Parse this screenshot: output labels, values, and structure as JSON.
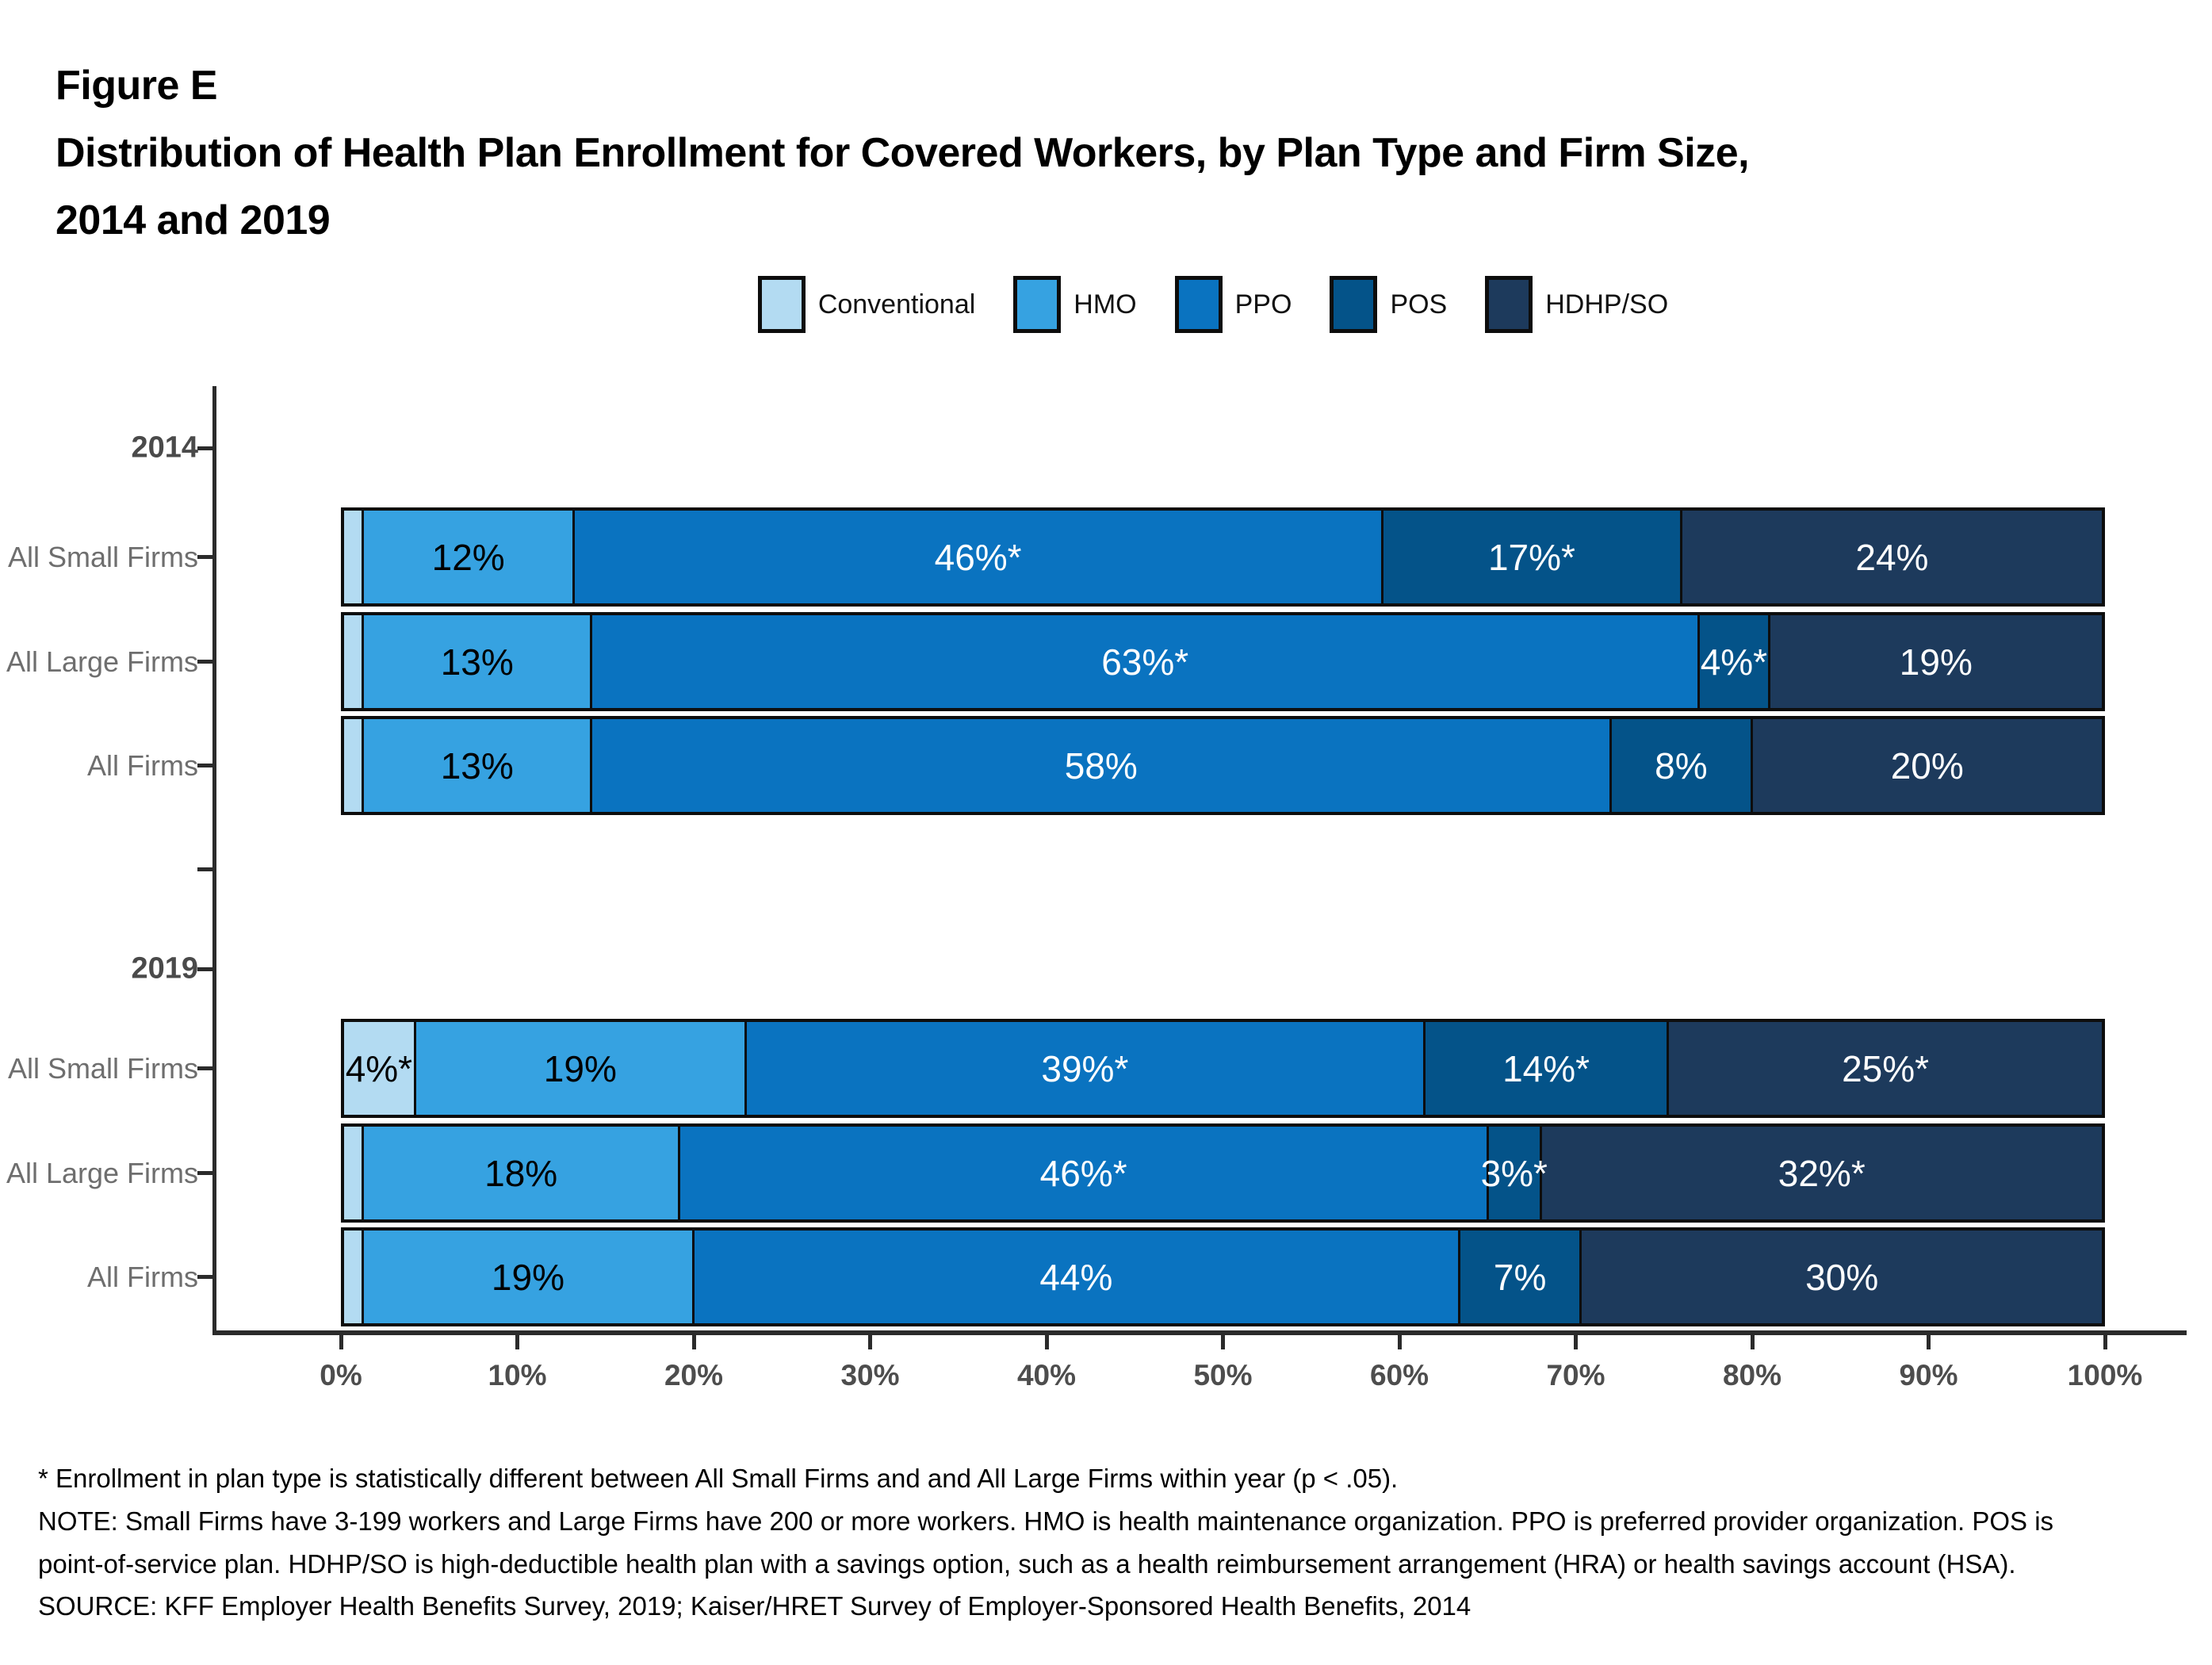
{
  "header": {
    "figure_label": "Figure E",
    "title_line1": "Distribution of Health Plan Enrollment for Covered Workers, by Plan Type and Firm Size,",
    "title_line2": "2014 and 2019"
  },
  "legend": [
    {
      "label": "Conventional",
      "color": "#B3DBF2"
    },
    {
      "label": "HMO",
      "color": "#36A2E1"
    },
    {
      "label": "PPO",
      "color": "#0A73C0"
    },
    {
      "label": "POS",
      "color": "#045389"
    },
    {
      "label": "HDHP/SO",
      "color": "#1D3A5C"
    }
  ],
  "chart_data": {
    "type": "bar",
    "subtype": "horizontal-stacked",
    "title": "Distribution of Health Plan Enrollment for Covered Workers, by Plan Type and Firm Size, 2014 and 2019",
    "series_names": [
      "Conventional",
      "HMO",
      "PPO",
      "POS",
      "HDHP/SO"
    ],
    "series_colors": [
      "#B3DBF2",
      "#36A2E1",
      "#0A73C0",
      "#045389",
      "#1D3A5C"
    ],
    "series_label_text_colors": [
      "#000000",
      "#000000",
      "#ffffff",
      "#ffffff",
      "#ffffff"
    ],
    "x_range": [
      0,
      100
    ],
    "x_ticks": [
      "0%",
      "10%",
      "20%",
      "30%",
      "40%",
      "50%",
      "60%",
      "70%",
      "80%",
      "90%",
      "100%"
    ],
    "legend_position": "top-center",
    "grid": false,
    "groups": [
      {
        "year_label": "2014",
        "rows": [
          {
            "category": "All Small Firms",
            "segments": [
              {
                "series": "Conventional",
                "value": 1,
                "label": ""
              },
              {
                "series": "HMO",
                "value": 12,
                "label": "12%"
              },
              {
                "series": "PPO",
                "value": 46,
                "label": "46%*"
              },
              {
                "series": "POS",
                "value": 17,
                "label": "17%*"
              },
              {
                "series": "HDHP/SO",
                "value": 24,
                "label": "24%"
              }
            ]
          },
          {
            "category": "All Large Firms",
            "segments": [
              {
                "series": "Conventional",
                "value": 1,
                "label": ""
              },
              {
                "series": "HMO",
                "value": 13,
                "label": "13%"
              },
              {
                "series": "PPO",
                "value": 63,
                "label": "63%*"
              },
              {
                "series": "POS",
                "value": 4,
                "label": "4%*"
              },
              {
                "series": "HDHP/SO",
                "value": 19,
                "label": "19%"
              }
            ]
          },
          {
            "category": "All Firms",
            "segments": [
              {
                "series": "Conventional",
                "value": 1,
                "label": ""
              },
              {
                "series": "HMO",
                "value": 13,
                "label": "13%"
              },
              {
                "series": "PPO",
                "value": 58,
                "label": "58%"
              },
              {
                "series": "POS",
                "value": 8,
                "label": "8%"
              },
              {
                "series": "HDHP/SO",
                "value": 20,
                "label": "20%"
              }
            ]
          }
        ]
      },
      {
        "year_label": "2019",
        "rows": [
          {
            "category": "All Small Firms",
            "segments": [
              {
                "series": "Conventional",
                "value": 4,
                "label": "4%*"
              },
              {
                "series": "HMO",
                "value": 19,
                "label": "19%"
              },
              {
                "series": "PPO",
                "value": 39,
                "label": "39%*"
              },
              {
                "series": "POS",
                "value": 14,
                "label": "14%*"
              },
              {
                "series": "HDHP/SO",
                "value": 25,
                "label": "25%*"
              }
            ]
          },
          {
            "category": "All Large Firms",
            "segments": [
              {
                "series": "Conventional",
                "value": 1,
                "label": ""
              },
              {
                "series": "HMO",
                "value": 18,
                "label": "18%"
              },
              {
                "series": "PPO",
                "value": 46,
                "label": "46%*"
              },
              {
                "series": "POS",
                "value": 3,
                "label": "3%*"
              },
              {
                "series": "HDHP/SO",
                "value": 32,
                "label": "32%*"
              }
            ]
          },
          {
            "category": "All Firms",
            "segments": [
              {
                "series": "Conventional",
                "value": 1,
                "label": ""
              },
              {
                "series": "HMO",
                "value": 19,
                "label": "19%"
              },
              {
                "series": "PPO",
                "value": 44,
                "label": "44%"
              },
              {
                "series": "POS",
                "value": 7,
                "label": "7%"
              },
              {
                "series": "HDHP/SO",
                "value": 30,
                "label": "30%"
              }
            ]
          }
        ]
      }
    ]
  },
  "footnotes": {
    "asterisk": "* Enrollment in plan type is statistically different between All Small Firms and and All Large Firms within year (p < .05).",
    "note": "NOTE: Small Firms have 3-199 workers and Large Firms have 200 or more workers. HMO is health maintenance organization. PPO is preferred provider organization. POS is point-of-service plan. HDHP/SO is high-deductible health plan with a savings option, such as a health reimbursement arrangement (HRA) or health savings account (HSA).",
    "source": "SOURCE: KFF Employer Health Benefits Survey, 2019; Kaiser/HRET Survey of Employer-Sponsored Health Benefits, 2014"
  }
}
